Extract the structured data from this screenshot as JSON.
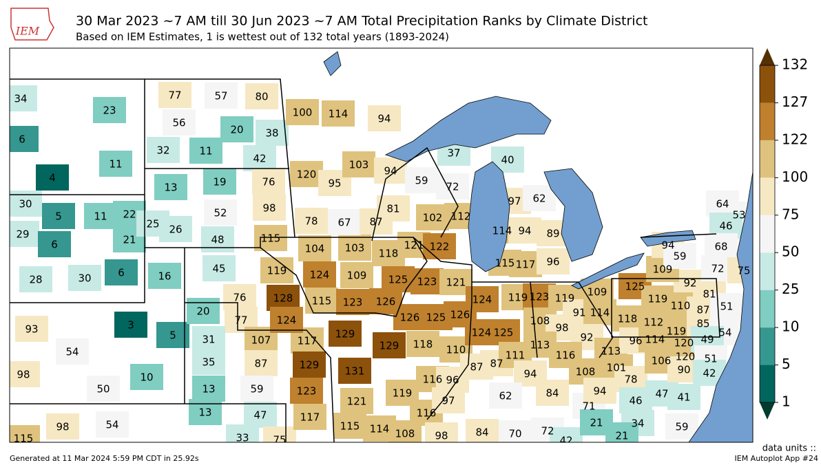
{
  "header": {
    "logo": "IEM",
    "title": "30 Mar 2023 ~7 AM till 30 Jun 2023 ~7 AM Total Precipitation Ranks by Climate District",
    "subtitle": "Based on IEM Estimates, 1 is wettest out of 132 total years (1893-2024)"
  },
  "districts": [
    34,
    23,
    6,
    11,
    4,
    30,
    5,
    11,
    22,
    29,
    6,
    21,
    6,
    28,
    30,
    16,
    93,
    54,
    3,
    5,
    98,
    10,
    50,
    115,
    98,
    54,
    13,
    47,
    33,
    75,
    77,
    57,
    80,
    56,
    20,
    38,
    32,
    11,
    42,
    13,
    19,
    76,
    25,
    26,
    52,
    98,
    48,
    115,
    45,
    76,
    77,
    20,
    31,
    35,
    13,
    107,
    87,
    59,
    117,
    129,
    123,
    117,
    119,
    104,
    103,
    118,
    124,
    109,
    125,
    128,
    115,
    123,
    126,
    124,
    100,
    114,
    94,
    120,
    95,
    103,
    78,
    67,
    87,
    94,
    59,
    72,
    37,
    40,
    81,
    102,
    112,
    121,
    122,
    129,
    129,
    131,
    121,
    119,
    115,
    114,
    108,
    123,
    121,
    126,
    125,
    126,
    118,
    110,
    116,
    96,
    116,
    97,
    98,
    124,
    119,
    124,
    125,
    87,
    87,
    111,
    97,
    62,
    114,
    94,
    89,
    115,
    117,
    96,
    123,
    119,
    109,
    91,
    114,
    108,
    98,
    92,
    113,
    116,
    94,
    84,
    62,
    84,
    70,
    72,
    42,
    71,
    21,
    34,
    21,
    108,
    113,
    101,
    94,
    78,
    46,
    47,
    41,
    59,
    125,
    119,
    92,
    118,
    112,
    110,
    96,
    114,
    119,
    120,
    106,
    120,
    90,
    85,
    87,
    81,
    51,
    54,
    49,
    51,
    42,
    109,
    94,
    59,
    64,
    53,
    46,
    68,
    72,
    75
  ],
  "colorbar": {
    "ticks": [
      1,
      5,
      10,
      25,
      50,
      75,
      100,
      122,
      127,
      132
    ],
    "colors": [
      "#01665e",
      "#35978f",
      "#80cdc1",
      "#c7eae5",
      "#f5f5f5",
      "#f6e8c3",
      "#dfc27d",
      "#bf812d",
      "#8c510a"
    ],
    "under_color": "#003c30",
    "over_color": "#543005",
    "units_label": "data units ::"
  },
  "footer": {
    "generated": "Generated at 11 Mar 2024 5:59 PM CDT in 25.92s",
    "app": "IEM Autoplot App #24"
  }
}
